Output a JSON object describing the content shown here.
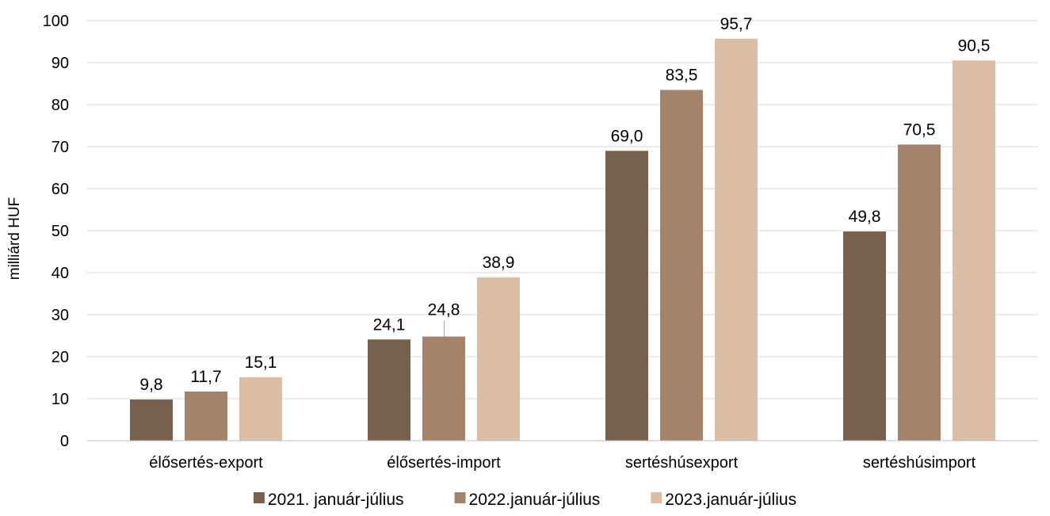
{
  "chart_data": {
    "type": "bar",
    "title": "",
    "xlabel": "",
    "ylabel": "milliárd HUF",
    "ylim": [
      0,
      100
    ],
    "yticks": [
      0,
      10,
      20,
      30,
      40,
      50,
      60,
      70,
      80,
      90,
      100
    ],
    "grid": true,
    "legend_position": "bottom",
    "categories": [
      "élősertés-export",
      "élősertés-import",
      "sertéshúsexport",
      "sertéshúsimport"
    ],
    "series": [
      {
        "name": "2021. január-július",
        "color": "#76604e",
        "values": [
          9.8,
          24.1,
          69.0,
          49.8
        ],
        "labels": [
          "9,8",
          "24,1",
          "69,0",
          "49,8"
        ]
      },
      {
        "name": "2022.január-július",
        "color": "#a3846b",
        "values": [
          11.7,
          24.8,
          83.5,
          70.5
        ],
        "labels": [
          "11,7",
          "24,8",
          "83,5",
          "70,5"
        ]
      },
      {
        "name": "2023.január-július",
        "color": "#dcbda6",
        "values": [
          15.1,
          38.9,
          95.7,
          90.5
        ],
        "labels": [
          "15,1",
          "38,9",
          "95,7",
          "90,5"
        ]
      }
    ]
  }
}
